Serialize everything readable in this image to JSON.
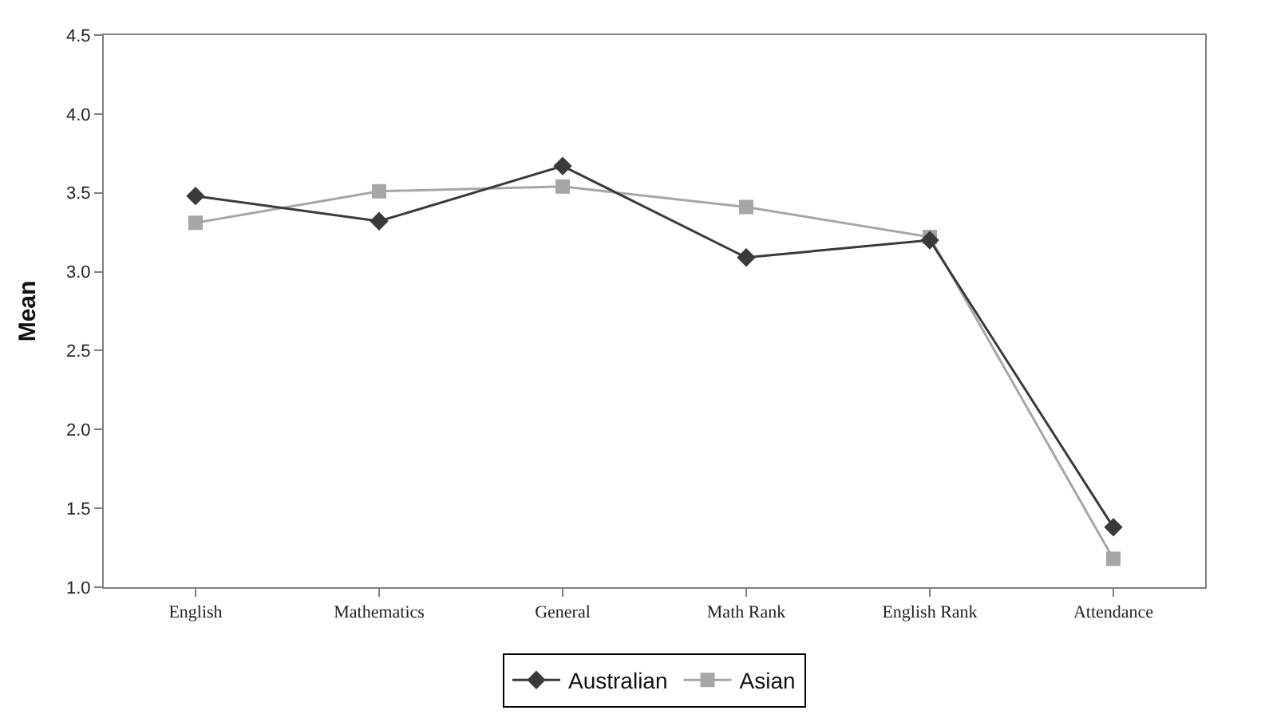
{
  "chart_data": {
    "type": "line",
    "ylabel": "Mean",
    "categories": [
      "English",
      "Mathematics",
      "General",
      "Math Rank",
      "English Rank",
      "Attendance"
    ],
    "series": [
      {
        "name": "Australian",
        "color": "#3a3a3a",
        "marker": "diamond",
        "values": [
          3.48,
          3.32,
          3.67,
          3.09,
          3.2,
          1.38
        ]
      },
      {
        "name": "Asian",
        "color": "#a6a6a6",
        "marker": "square",
        "values": [
          3.31,
          3.51,
          3.54,
          3.41,
          3.22,
          1.18
        ]
      }
    ],
    "ylim": [
      1.0,
      4.5
    ],
    "yticks": [
      {
        "value": 1.0,
        "label": "1.0"
      },
      {
        "value": 1.5,
        "label": "1.5"
      },
      {
        "value": 2.0,
        "label": "2.0"
      },
      {
        "value": 2.5,
        "label": "2.5"
      },
      {
        "value": 3.0,
        "label": "3.0"
      },
      {
        "value": 3.5,
        "label": "3.5"
      },
      {
        "value": 4.0,
        "label": "4.0"
      },
      {
        "value": 4.5,
        "label": "4.5"
      }
    ],
    "grid": false,
    "legend": "bottom",
    "line_style": "solid"
  }
}
